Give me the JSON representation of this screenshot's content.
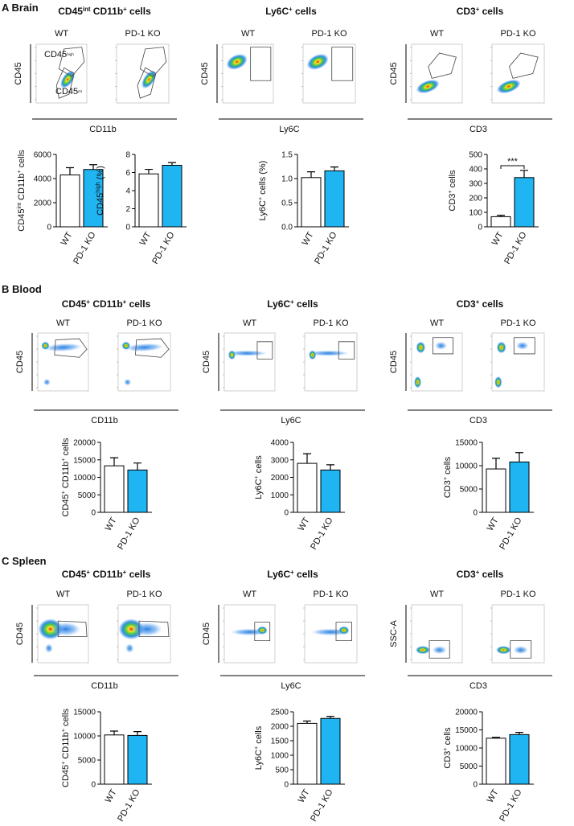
{
  "sections": [
    {
      "title": "A Brain",
      "panels": [
        {
          "title": [
            "CD45",
            "int",
            " CD11b",
            "+",
            " cells"
          ],
          "flow_labels": [
            "WT",
            "PD-1 KO"
          ],
          "gate_labels": [
            [
              "CD45",
              "high"
            ],
            [
              "CD45",
              "int"
            ]
          ],
          "flow_ylabel": "CD45",
          "flow_xlabel": "CD11b",
          "chart_data": [
            {
              "type": "bar",
              "ylabel": [
                "CD45",
                "int",
                " CD11b",
                "+",
                " cells"
              ],
              "categories": [
                "WT",
                "PD-1 KO"
              ],
              "values": [
                4300,
                4750
              ],
              "errors": [
                600,
                400
              ],
              "colors": [
                "#ffffff",
                "#1fb5f2"
              ],
              "ylim": [
                0,
                6000
              ],
              "yticks": [
                0,
                2000,
                4000,
                6000
              ]
            },
            {
              "type": "bar",
              "ylabel": [
                "CD45",
                "high",
                " (%)"
              ],
              "categories": [
                "WT",
                "PD-1 KO"
              ],
              "values": [
                5.85,
                6.8
              ],
              "errors": [
                0.5,
                0.3
              ],
              "colors": [
                "#ffffff",
                "#1fb5f2"
              ],
              "ylim": [
                0,
                8
              ],
              "yticks": [
                0,
                2,
                4,
                6,
                8
              ]
            }
          ]
        },
        {
          "title": [
            "Ly6C",
            "+",
            " cells"
          ],
          "flow_labels": [
            "WT",
            "PD-1 KO"
          ],
          "flow_ylabel": "CD45",
          "flow_xlabel": "Ly6C",
          "chart_data": [
            {
              "type": "bar",
              "ylabel": [
                "Ly6C",
                "+",
                " cells (%)"
              ],
              "categories": [
                "WT",
                "PD-1 KO"
              ],
              "values": [
                1.02,
                1.16
              ],
              "errors": [
                0.12,
                0.08
              ],
              "colors": [
                "#ffffff",
                "#1fb5f2"
              ],
              "ylim": [
                0,
                1.5
              ],
              "yticks": [
                {
                  "value": 0,
                  "label": "0.0"
                },
                0.5,
                {
                  "value": 1,
                  "label": "1.0"
                },
                1.5
              ]
            }
          ]
        },
        {
          "title": [
            "CD3",
            "+",
            " cells"
          ],
          "flow_labels": [
            "WT",
            "PD-1 KO"
          ],
          "flow_ylabel": "CD45",
          "flow_xlabel": "CD3",
          "chart_data": [
            {
              "type": "bar",
              "ylabel": [
                "CD3",
                "+",
                " cells"
              ],
              "categories": [
                "WT",
                "PD-1 KO"
              ],
              "values": [
                70,
                340
              ],
              "errors": [
                10,
                50
              ],
              "colors": [
                "#ffffff",
                "#1fb5f2"
              ],
              "ylim": [
                0,
                500
              ],
              "yticks": [
                0,
                100,
                200,
                300,
                400,
                500
              ],
              "annotation": "***"
            }
          ]
        }
      ]
    },
    {
      "title": "B Blood",
      "panels": [
        {
          "title": [
            "CD45",
            "+",
            " CD11b",
            "+",
            " cells"
          ],
          "flow_labels": [
            "WT",
            "PD-1 KO"
          ],
          "flow_ylabel": "CD45",
          "flow_xlabel": "CD11b",
          "chart_data": [
            {
              "type": "bar",
              "ylabel": [
                "CD45",
                "+",
                " CD11b",
                "+",
                " cells"
              ],
              "categories": [
                "WT",
                "PD-1 KO"
              ],
              "values": [
                13300,
                12100
              ],
              "errors": [
                2300,
                2000
              ],
              "colors": [
                "#ffffff",
                "#1fb5f2"
              ],
              "ylim": [
                0,
                20000
              ],
              "yticks": [
                0,
                5000,
                10000,
                15000,
                20000
              ]
            }
          ]
        },
        {
          "title": [
            "Ly6C",
            "+",
            " cells"
          ],
          "flow_labels": [
            "WT",
            "PD-1 KO"
          ],
          "flow_ylabel": "CD45",
          "flow_xlabel": "Ly6C",
          "chart_data": [
            {
              "type": "bar",
              "ylabel": [
                "Ly6C",
                "+",
                " cells"
              ],
              "categories": [
                "WT",
                "PD-1 KO"
              ],
              "values": [
                2800,
                2420
              ],
              "errors": [
                550,
                300
              ],
              "colors": [
                "#ffffff",
                "#1fb5f2"
              ],
              "ylim": [
                0,
                4000
              ],
              "yticks": [
                0,
                1000,
                2000,
                3000,
                4000
              ]
            }
          ]
        },
        {
          "title": [
            "CD3",
            "+",
            " cells"
          ],
          "flow_labels": [
            "WT",
            "PD-1 KO"
          ],
          "flow_ylabel": "CD45",
          "flow_xlabel": "CD3",
          "chart_data": [
            {
              "type": "bar",
              "ylabel": [
                "CD3",
                "+",
                " cells"
              ],
              "categories": [
                "WT",
                "PD-1 KO"
              ],
              "values": [
                9300,
                10800
              ],
              "errors": [
                2300,
                2000
              ],
              "colors": [
                "#ffffff",
                "#1fb5f2"
              ],
              "ylim": [
                0,
                15000
              ],
              "yticks": [
                0,
                5000,
                10000,
                15000
              ]
            }
          ]
        }
      ]
    },
    {
      "title": "C Spleen",
      "panels": [
        {
          "title": [
            "CD45",
            "+",
            " CD11b",
            "+",
            " cells"
          ],
          "flow_labels": [
            "WT",
            "PD-1 KO"
          ],
          "flow_ylabel": "CD45",
          "flow_xlabel": "CD11b",
          "chart_data": [
            {
              "type": "bar",
              "ylabel": [
                "CD45",
                "+",
                " CD11b",
                "+",
                " cells"
              ],
              "categories": [
                "WT",
                "PD-1 KO"
              ],
              "values": [
                10200,
                10100
              ],
              "errors": [
                800,
                800
              ],
              "colors": [
                "#ffffff",
                "#1fb5f2"
              ],
              "ylim": [
                0,
                15000
              ],
              "yticks": [
                0,
                5000,
                10000,
                15000
              ]
            }
          ]
        },
        {
          "title": [
            "Ly6C",
            "+",
            " cells"
          ],
          "flow_labels": [
            "WT",
            "PD-1 KO"
          ],
          "flow_ylabel": "CD45",
          "flow_xlabel": "Ly6C",
          "chart_data": [
            {
              "type": "bar",
              "ylabel": [
                "Ly6C",
                "+",
                " cells"
              ],
              "categories": [
                "WT",
                "PD-1 KO"
              ],
              "values": [
                2100,
                2270
              ],
              "errors": [
                80,
                70
              ],
              "colors": [
                "#ffffff",
                "#1fb5f2"
              ],
              "ylim": [
                0,
                2500
              ],
              "yticks": [
                0,
                500,
                1000,
                1500,
                2000,
                2500
              ]
            }
          ]
        },
        {
          "title": [
            "CD3",
            "+",
            " cells"
          ],
          "flow_labels": [
            "WT",
            "PD-1 KO"
          ],
          "flow_ylabel": "SSC-A",
          "flow_xlabel": "CD3",
          "chart_data": [
            {
              "type": "bar",
              "ylabel": [
                "CD3",
                "+",
                " cells"
              ],
              "categories": [
                "WT",
                "PD-1 KO"
              ],
              "values": [
                12700,
                13700
              ],
              "errors": [
                250,
                600
              ],
              "colors": [
                "#ffffff",
                "#1fb5f2"
              ],
              "ylim": [
                0,
                20000
              ],
              "yticks": [
                0,
                5000,
                10000,
                15000,
                20000
              ]
            }
          ]
        }
      ]
    }
  ]
}
